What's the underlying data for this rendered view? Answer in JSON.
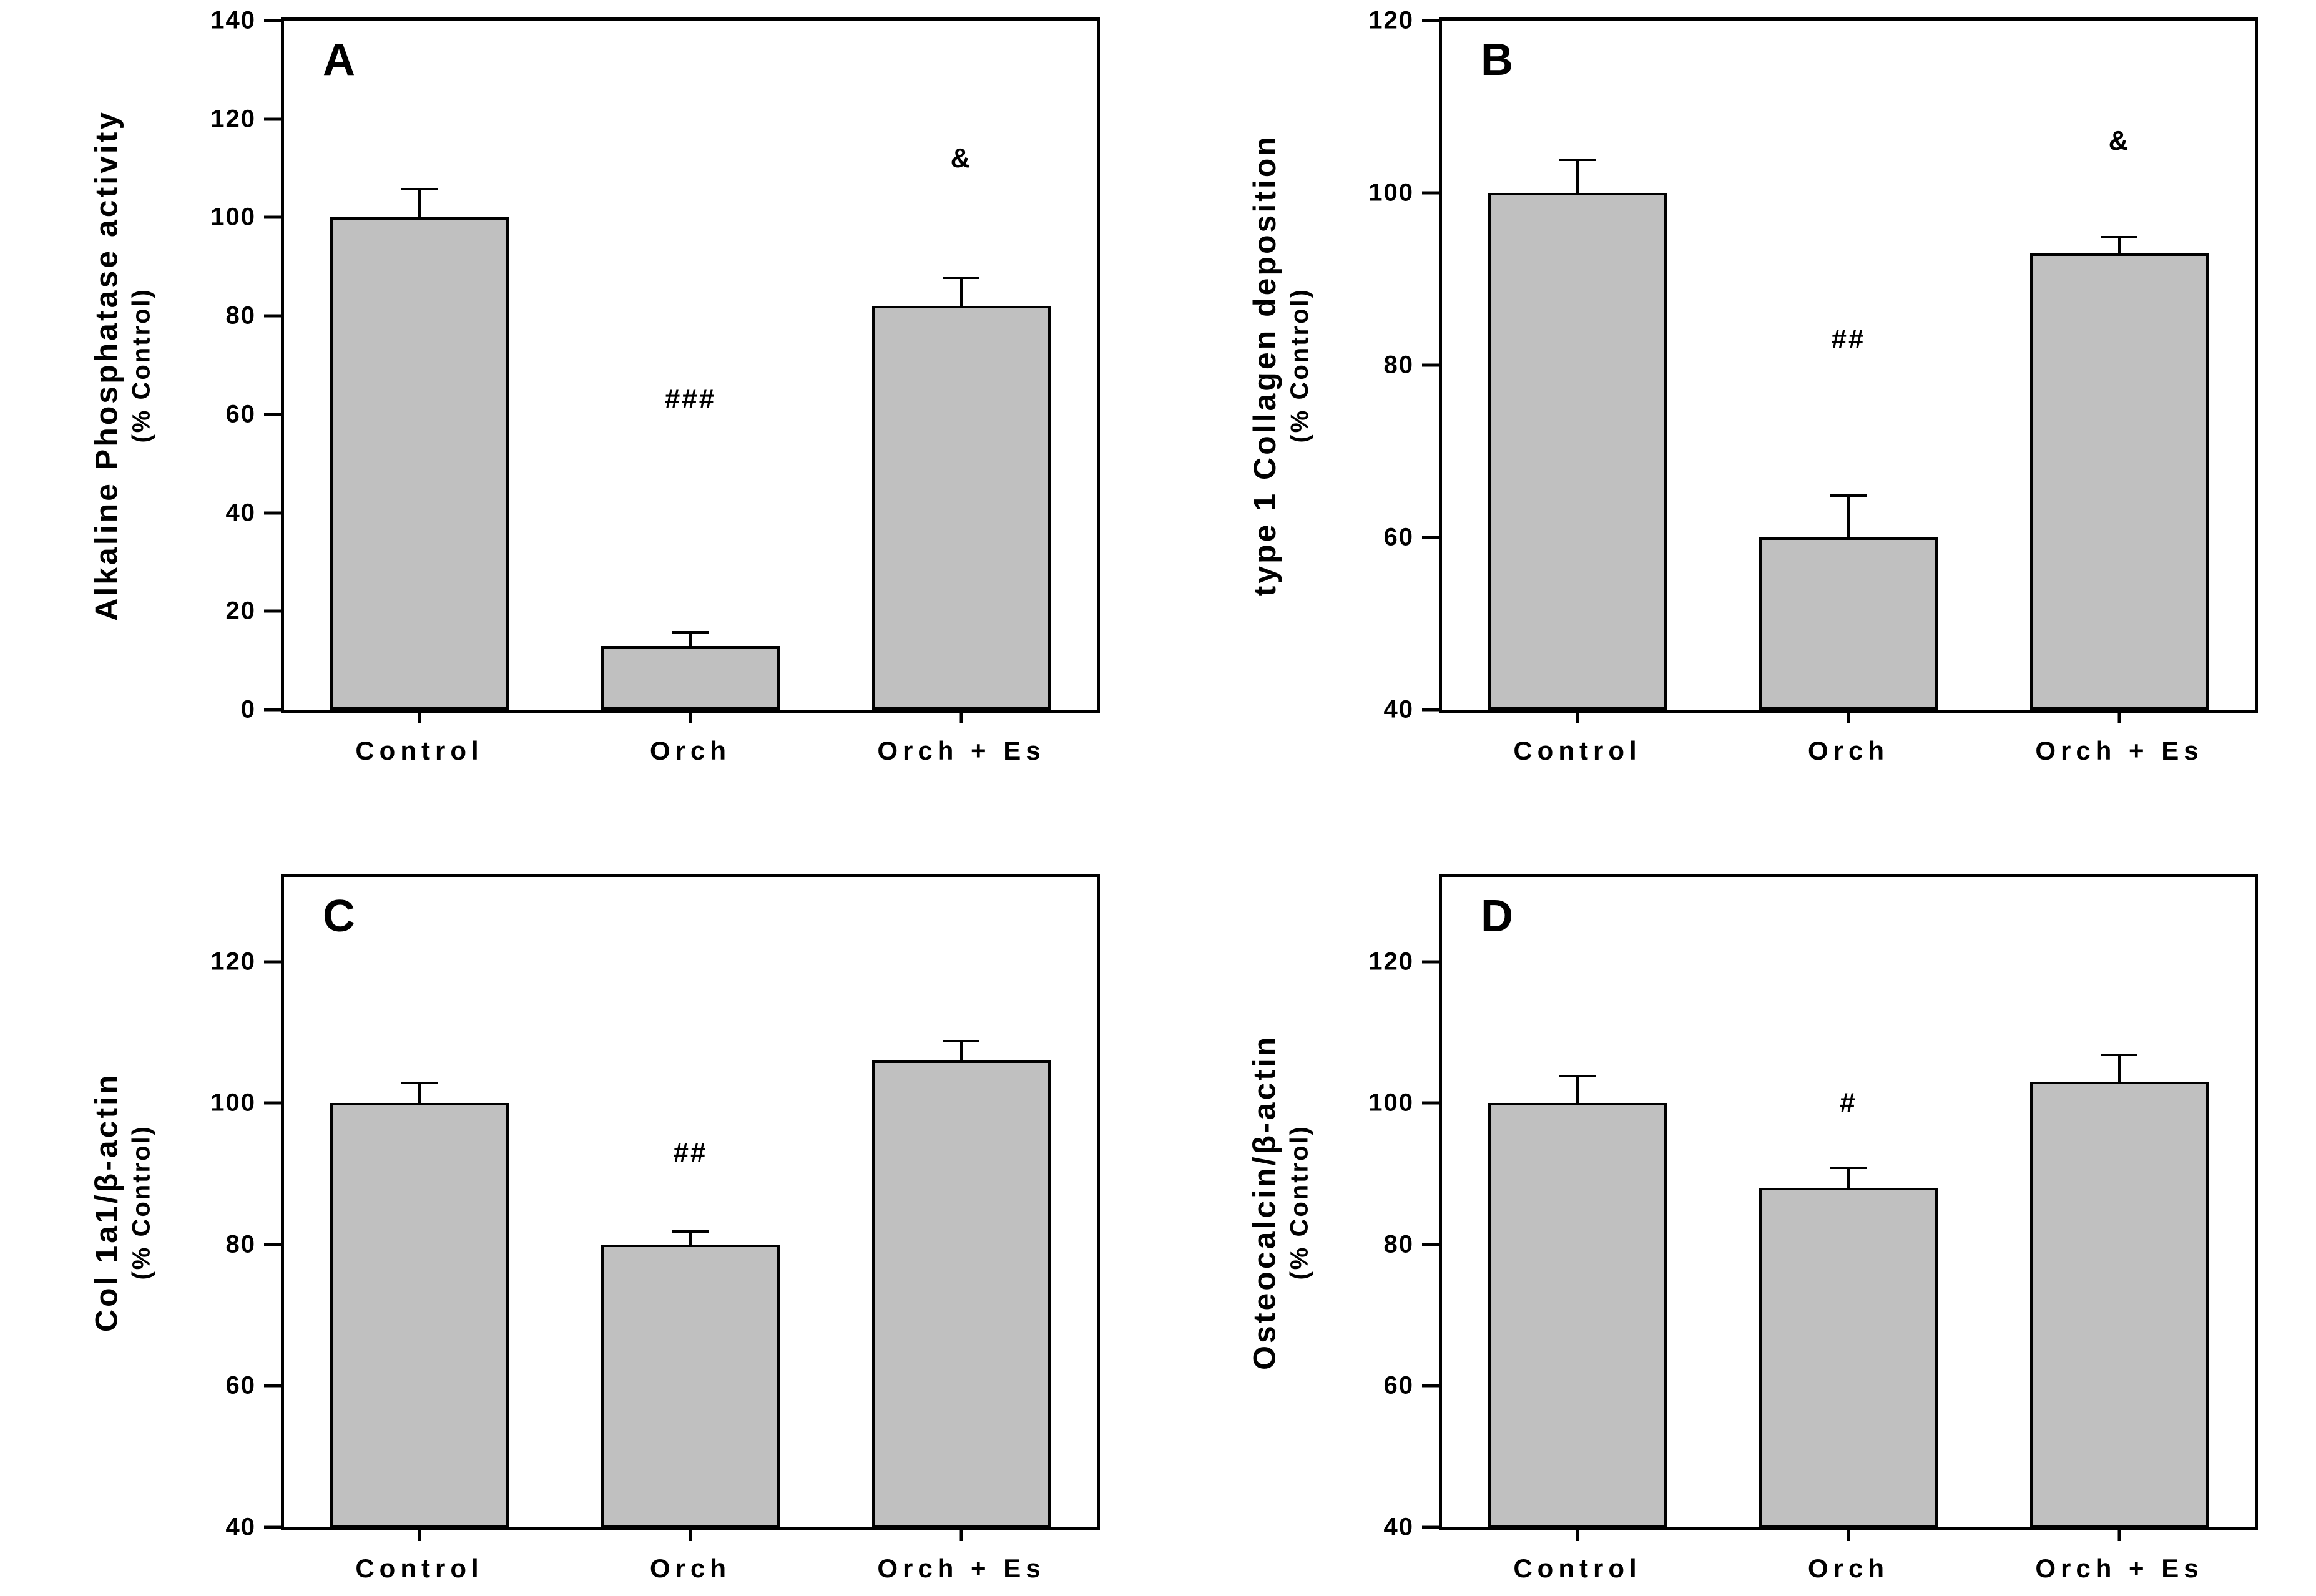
{
  "figure": {
    "background": "#ffffff",
    "bar_fill": "#c0c0c0",
    "bar_border": "#000000",
    "text_color": "#000000"
  },
  "chart_data": [
    {
      "type": "bar",
      "panel_label": "A",
      "ylabel": "Alkaline Phosphatase activity",
      "ylabel_sub": "(% Control)",
      "xlabel": "",
      "categories": [
        "Control",
        "Orch",
        "Orch + Es"
      ],
      "values": [
        100,
        13,
        82
      ],
      "errors_up": [
        6,
        3,
        6
      ],
      "annotations": [
        {
          "bar": 1,
          "text": "###",
          "y": 63
        },
        {
          "bar": 2,
          "text": "&",
          "y": 112
        }
      ],
      "ylim": [
        0,
        140
      ],
      "yticks": [
        0,
        20,
        40,
        60,
        80,
        100,
        120,
        140
      ],
      "grid": false,
      "legend": null
    },
    {
      "type": "bar",
      "panel_label": "B",
      "ylabel": "type 1 Collagen deposition",
      "ylabel_sub": "(% Control)",
      "xlabel": "",
      "categories": [
        "Control",
        "Orch",
        "Orch + Es"
      ],
      "values": [
        100,
        60,
        93
      ],
      "errors_up": [
        4,
        5,
        2
      ],
      "annotations": [
        {
          "bar": 1,
          "text": "##",
          "y": 83
        },
        {
          "bar": 2,
          "text": "&",
          "y": 106
        }
      ],
      "ylim": [
        40,
        120
      ],
      "yticks": [
        40,
        60,
        80,
        100,
        120
      ],
      "grid": false,
      "legend": null
    },
    {
      "type": "bar",
      "panel_label": "C",
      "ylabel": "Col 1a1/β-actin",
      "ylabel_sub": "(% Control)",
      "xlabel": "",
      "categories": [
        "Control",
        "Orch",
        "Orch + Es"
      ],
      "values": [
        100,
        80,
        106
      ],
      "errors_up": [
        3,
        2,
        3
      ],
      "annotations": [
        {
          "bar": 1,
          "text": "##",
          "y": 93
        }
      ],
      "ylim": [
        40,
        132
      ],
      "yticks": [
        40,
        60,
        80,
        100,
        120
      ],
      "grid": false,
      "legend": null
    },
    {
      "type": "bar",
      "panel_label": "D",
      "ylabel": "Osteocalcin/β-actin",
      "ylabel_sub": "(% Control)",
      "xlabel": "",
      "categories": [
        "Control",
        "Orch",
        "Orch + Es"
      ],
      "values": [
        100,
        88,
        103
      ],
      "errors_up": [
        4,
        3,
        4
      ],
      "annotations": [
        {
          "bar": 1,
          "text": "#",
          "y": 100
        }
      ],
      "ylim": [
        40,
        132
      ],
      "yticks": [
        40,
        60,
        80,
        100,
        120
      ],
      "grid": false,
      "legend": null
    }
  ]
}
